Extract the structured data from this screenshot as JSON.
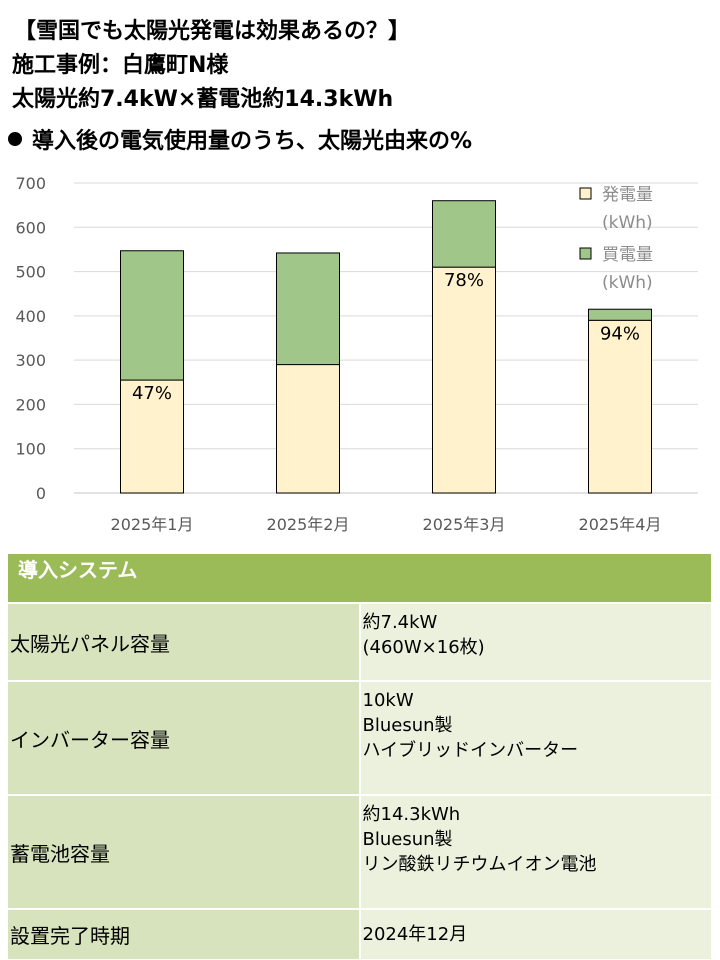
{
  "header": {
    "line1": "【雪国でも太陽光発電は効果あるの？】",
    "line2": "施工事例：白鷹町N様",
    "line3": "太陽光約7.4kW×蓄電池約14.3kWh"
  },
  "subtitle": "導入後の電気使用量のうち、太陽光由来の%",
  "chart_data": {
    "type": "bar",
    "stacked": true,
    "categories": [
      "2025年1月",
      "2025年2月",
      "2025年3月",
      "2025年4月"
    ],
    "series": [
      {
        "name": "発電量",
        "unit": "(kWh)",
        "color": "#fff2cc",
        "values": [
          255,
          290,
          510,
          390
        ]
      },
      {
        "name": "買電量",
        "unit": "(kWh)",
        "color": "#a0c68a",
        "values": [
          292,
          252,
          150,
          25
        ]
      }
    ],
    "data_labels": [
      "47%",
      "",
      "78%",
      "94%"
    ],
    "ylim": [
      0,
      700
    ],
    "yticks": [
      0,
      100,
      200,
      300,
      400,
      500,
      600,
      700
    ],
    "grid": true,
    "legend": "top-right"
  },
  "table": {
    "header": "導入システム",
    "rows": [
      {
        "label": "太陽光パネル容量",
        "values": [
          "約7.4kW",
          "(460W×16枚)"
        ]
      },
      {
        "label": "インバーター容量",
        "values": [
          "10kW",
          "Bluesun製",
          "ハイブリッドインバーター"
        ]
      },
      {
        "label": "蓄電池容量",
        "values": [
          "約14.3kWh",
          "Bluesun製",
          "リン酸鉄リチウムイオン電池"
        ]
      },
      {
        "label": "設置完了時期",
        "values": [
          "2024年12月"
        ]
      }
    ]
  }
}
